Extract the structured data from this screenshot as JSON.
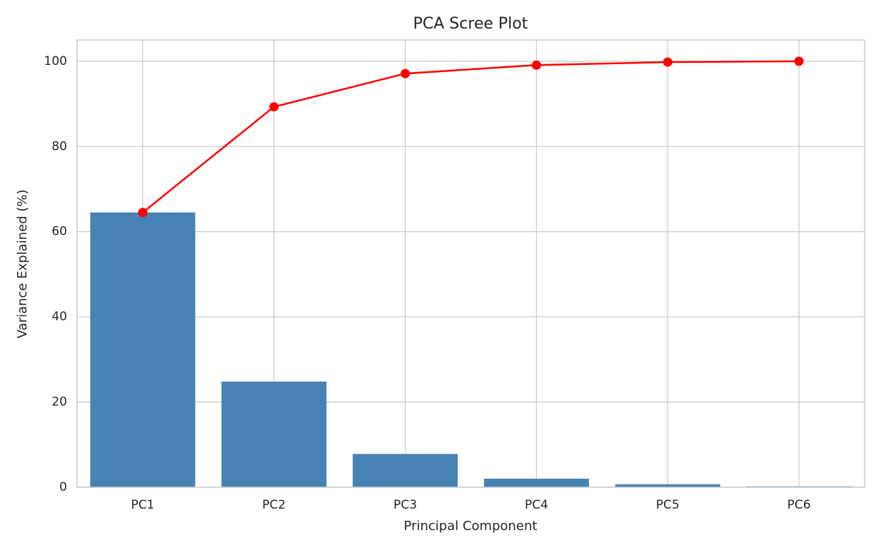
{
  "chart_data": {
    "type": "bar",
    "title": "PCA Scree Plot",
    "x_label": "Principal Component",
    "y_label": "Variance Explained (%)",
    "categories": [
      "PC1",
      "PC2",
      "PC3",
      "PC4",
      "PC5",
      "PC6"
    ],
    "values": [
      64.5,
      24.8,
      7.8,
      2.0,
      0.7,
      0.2
    ],
    "color": "#4682b4",
    "cumulative_values": [
      64.5,
      89.3,
      97.1,
      99.1,
      99.8,
      100
    ],
    "line_color": "#ff0000",
    "ylim": [
      0,
      105
    ],
    "yticks": [
      0,
      20,
      40,
      60,
      80,
      100
    ],
    "grid": true
  }
}
